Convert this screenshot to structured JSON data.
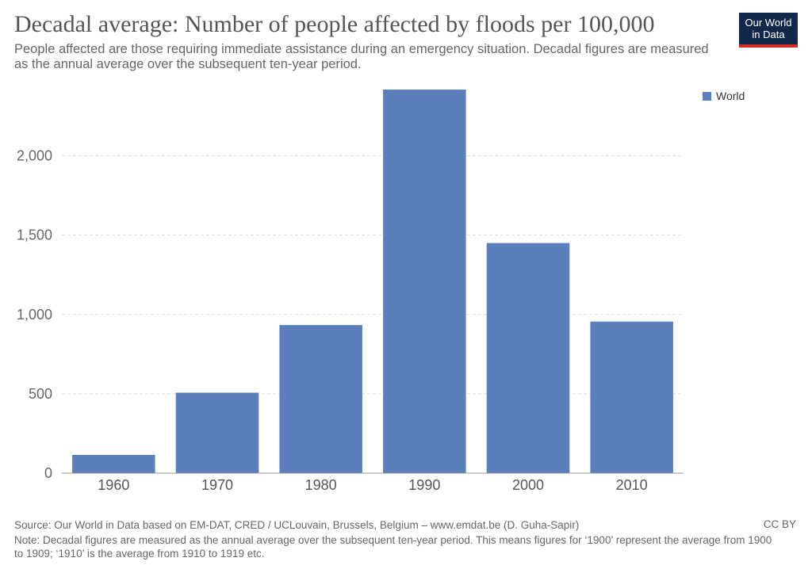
{
  "title": "Decadal average: Number of people affected by floods per 100,000",
  "subtitle": "People affected are those requiring immediate assistance during an emergency situation. Decadal figures are measured as the annual average over the subsequent ten-year period.",
  "logo": {
    "line1": "Our World",
    "line2": "in Data"
  },
  "colors": {
    "bar": "#5b7fbc",
    "grid": "#dddddd",
    "axis": "#999999",
    "logo_bg": "#12284b",
    "logo_accent": "#d42b21"
  },
  "chart_data": {
    "type": "bar",
    "title": "Decadal average: Number of people affected by floods per 100,000",
    "categories": [
      "1960",
      "1970",
      "1980",
      "1990",
      "2000",
      "2010"
    ],
    "series": [
      {
        "name": "World",
        "values": [
          115,
          507,
          933,
          2417,
          1450,
          955
        ]
      }
    ],
    "yticks": [
      0,
      500,
      1000,
      1500,
      2000
    ],
    "ytick_labels": [
      "0",
      "500",
      "1,000",
      "1,500",
      "2,000"
    ],
    "ylim": [
      0,
      2417
    ],
    "grid": true,
    "legend_placement": "top-right"
  },
  "footer": {
    "source": "Source: Our World in Data based on EM-DAT, CRED / UCLouvain, Brussels, Belgium – www.emdat.be (D. Guha-Sapir)",
    "license": "CC BY",
    "note": "Note: Decadal figures are measured as the annual average over the subsequent ten-year period. This means figures for ‘1900’ represent the average from 1900 to 1909; ‘1910’ is the average from 1910 to 1919 etc."
  }
}
